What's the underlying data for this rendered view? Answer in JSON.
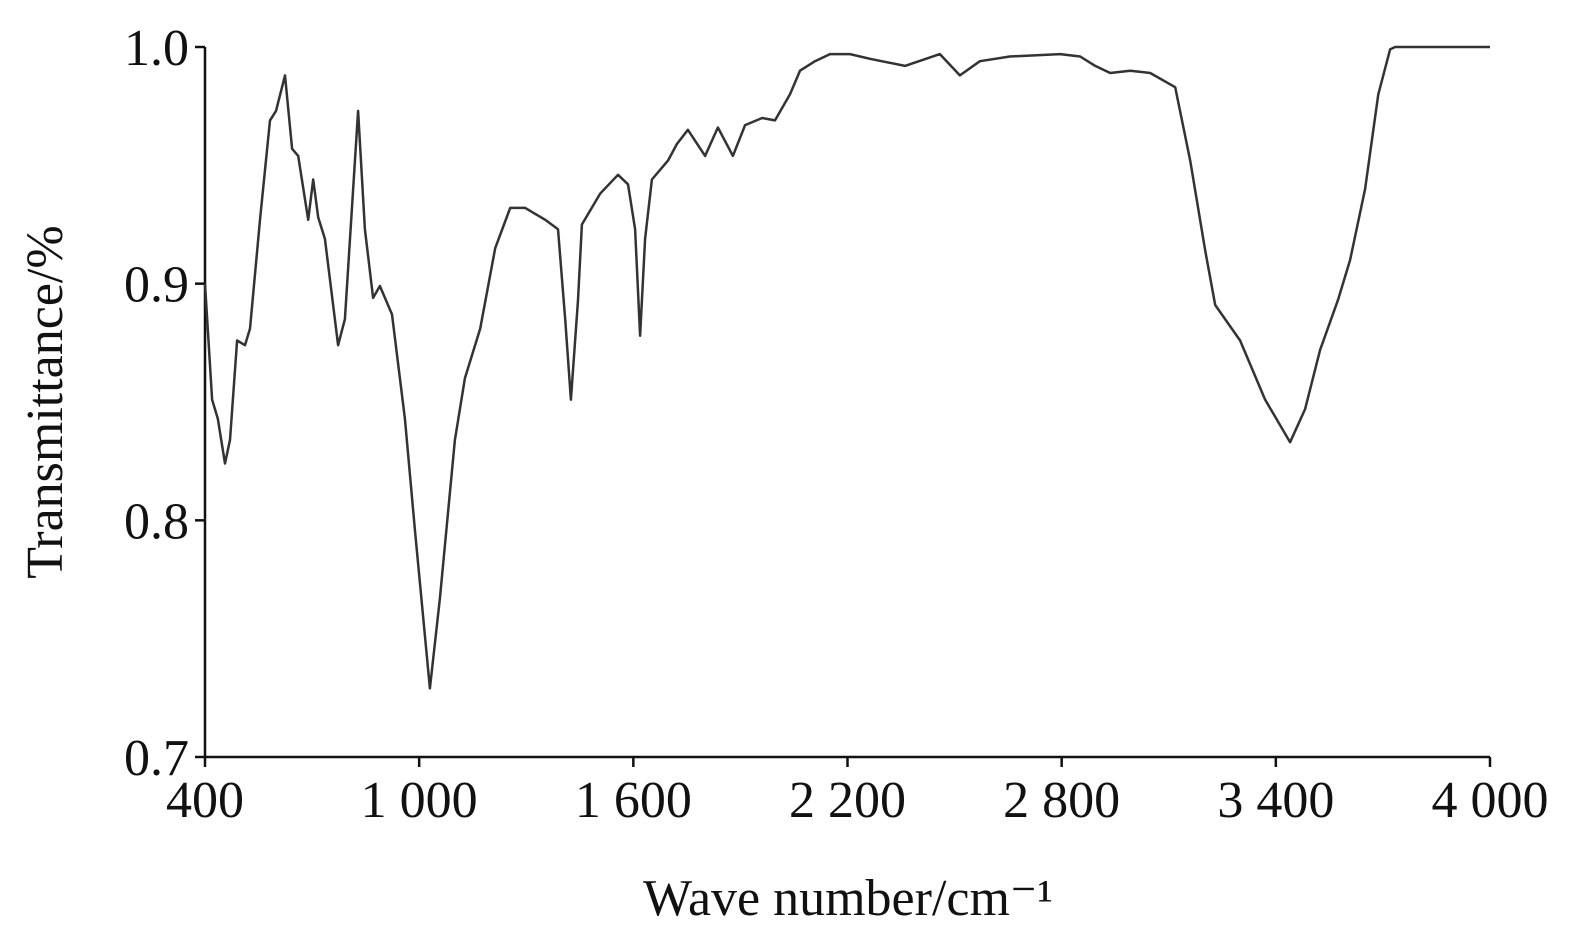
{
  "chart_data": {
    "type": "line",
    "x_label": "Wave number/cm⁻¹",
    "y_label": "Transmittance/%",
    "xlim": [
      400,
      4000
    ],
    "ylim": [
      0.7,
      1.0
    ],
    "xticks": [
      400,
      {
        "value": 1000,
        "label": "1 000"
      },
      {
        "value": 1600,
        "label": "1 600"
      },
      {
        "value": 2200,
        "label": "2 200"
      },
      {
        "value": 2800,
        "label": "2 800"
      },
      {
        "value": 3400,
        "label": "3 400"
      },
      {
        "value": 4000,
        "label": "4 000"
      }
    ],
    "yticks": [
      {
        "value": 0.7,
        "label": "0.7"
      },
      0.8,
      0.9,
      {
        "value": 1.0,
        "label": "1.0"
      }
    ],
    "color": "#333333",
    "grid": false,
    "x": [
      400,
      420,
      436,
      456,
      470,
      490,
      512,
      526,
      554,
      582,
      599,
      624,
      644,
      661,
      689,
      703,
      717,
      736,
      773,
      792,
      829,
      848,
      871,
      890,
      924,
      960,
      988,
      1030,
      1058,
      1100,
      1128,
      1171,
      1213,
      1255,
      1297,
      1353,
      1389,
      1409,
      1425,
      1445,
      1456,
      1507,
      1557,
      1585,
      1605,
      1619,
      1633,
      1652,
      1697,
      1722,
      1753,
      1801,
      1837,
      1879,
      1913,
      1961,
      1997,
      2039,
      2067,
      2109,
      2151,
      2207,
      2263,
      2361,
      2459,
      2515,
      2571,
      2655,
      2796,
      2852,
      2894,
      2936,
      2992,
      3048,
      3118,
      3160,
      3202,
      3230,
      3300,
      3370,
      3440,
      3482,
      3524,
      3574,
      3608,
      3650,
      3687,
      3720,
      3734,
      4000
    ],
    "values": [
      0.9,
      0.851,
      0.843,
      0.824,
      0.834,
      0.876,
      0.874,
      0.881,
      0.927,
      0.969,
      0.973,
      0.988,
      0.957,
      0.954,
      0.927,
      0.944,
      0.928,
      0.919,
      0.874,
      0.885,
      0.973,
      0.923,
      0.894,
      0.899,
      0.887,
      0.843,
      0.796,
      0.729,
      0.767,
      0.834,
      0.86,
      0.881,
      0.915,
      0.932,
      0.932,
      0.927,
      0.923,
      0.885,
      0.851,
      0.893,
      0.925,
      0.938,
      0.946,
      0.942,
      0.923,
      0.878,
      0.919,
      0.944,
      0.952,
      0.959,
      0.965,
      0.954,
      0.966,
      0.954,
      0.967,
      0.97,
      0.969,
      0.98,
      0.99,
      0.994,
      0.997,
      0.997,
      0.995,
      0.992,
      0.997,
      0.988,
      0.994,
      0.996,
      0.997,
      0.996,
      0.992,
      0.989,
      0.99,
      0.989,
      0.983,
      0.952,
      0.914,
      0.891,
      0.876,
      0.851,
      0.833,
      0.847,
      0.872,
      0.893,
      0.91,
      0.94,
      0.98,
      0.999,
      1.0,
      1.0
    ]
  }
}
